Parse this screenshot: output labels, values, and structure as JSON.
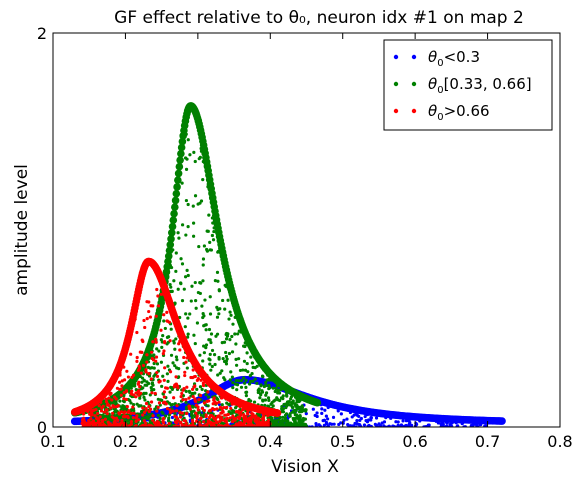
{
  "chart_data": {
    "type": "scatter",
    "title": "GF effect relative to θ₀, neuron idx #1 on map 2",
    "xlabel": "Vision X",
    "ylabel": "amplitude level",
    "xlim": [
      0.1,
      0.8
    ],
    "ylim": [
      0,
      2
    ],
    "xticks": [
      "0.1",
      "0.2",
      "0.3",
      "0.4",
      "0.5",
      "0.6",
      "0.7",
      "0.8"
    ],
    "yticks": [
      "0",
      "2"
    ],
    "grid": false,
    "legend_position": "top-right",
    "legend": [
      {
        "symbol": "θ",
        "sub": "0",
        "text": "<0.3"
      },
      {
        "symbol": "θ",
        "sub": "0",
        "text": "[0.33, 0.66]"
      },
      {
        "symbol": "θ",
        "sub": "0",
        "text": ">0.66"
      }
    ],
    "series": [
      {
        "color": "#0000ff",
        "curve": {
          "x_start": 0.13,
          "x_end": 0.72,
          "peak_x": 0.365,
          "peak_y": 0.23,
          "width_left": 0.07,
          "width_right": 0.11
        },
        "scatter_count": 400,
        "scatter_x_range": [
          0.15,
          0.7
        ],
        "scatter_y_max": 0.12
      },
      {
        "color": "#008000",
        "curve": {
          "x_start": 0.13,
          "x_end": 0.465,
          "peak_x": 0.29,
          "peak_y": 1.62,
          "width_left": 0.032,
          "width_right": 0.048
        },
        "scatter_count": 1400,
        "scatter_x_range": [
          0.15,
          0.45
        ],
        "scatter_y_max": 1.55
      },
      {
        "color": "#ff0000",
        "curve": {
          "x_start": 0.13,
          "x_end": 0.41,
          "peak_x": 0.232,
          "peak_y": 0.83,
          "width_left": 0.03,
          "width_right": 0.05
        },
        "scatter_count": 700,
        "scatter_x_range": [
          0.14,
          0.4
        ],
        "scatter_y_max": 0.7
      }
    ]
  }
}
